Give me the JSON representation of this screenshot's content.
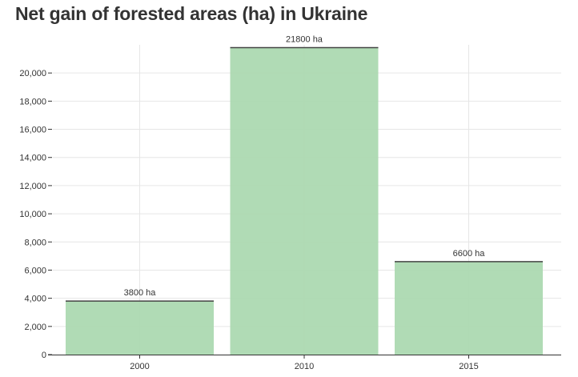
{
  "chart_data": {
    "type": "bar",
    "title": "Net gain of forested areas (ha) in Ukraine",
    "xlabel": "",
    "ylabel": "",
    "categories": [
      "2000",
      "2010",
      "2015"
    ],
    "values": [
      3800,
      21800,
      6600
    ],
    "data_labels": [
      "3800 ha",
      "21800 ha",
      "6600 ha"
    ],
    "ylim": [
      0,
      22000
    ],
    "y_ticks": [
      0,
      2000,
      4000,
      6000,
      8000,
      10000,
      12000,
      14000,
      16000,
      18000,
      20000
    ],
    "y_tick_labels": [
      "0",
      "2,000",
      "4,000",
      "6,000",
      "8,000",
      "10,000",
      "12,000",
      "14,000",
      "16,000",
      "18,000",
      "20,000"
    ],
    "grid": true,
    "legend": "none",
    "colors": {
      "bar_fill": "#acd9b1",
      "bar_top": "#444444",
      "grid": "#e6e6e6",
      "axis": "#333333"
    }
  }
}
